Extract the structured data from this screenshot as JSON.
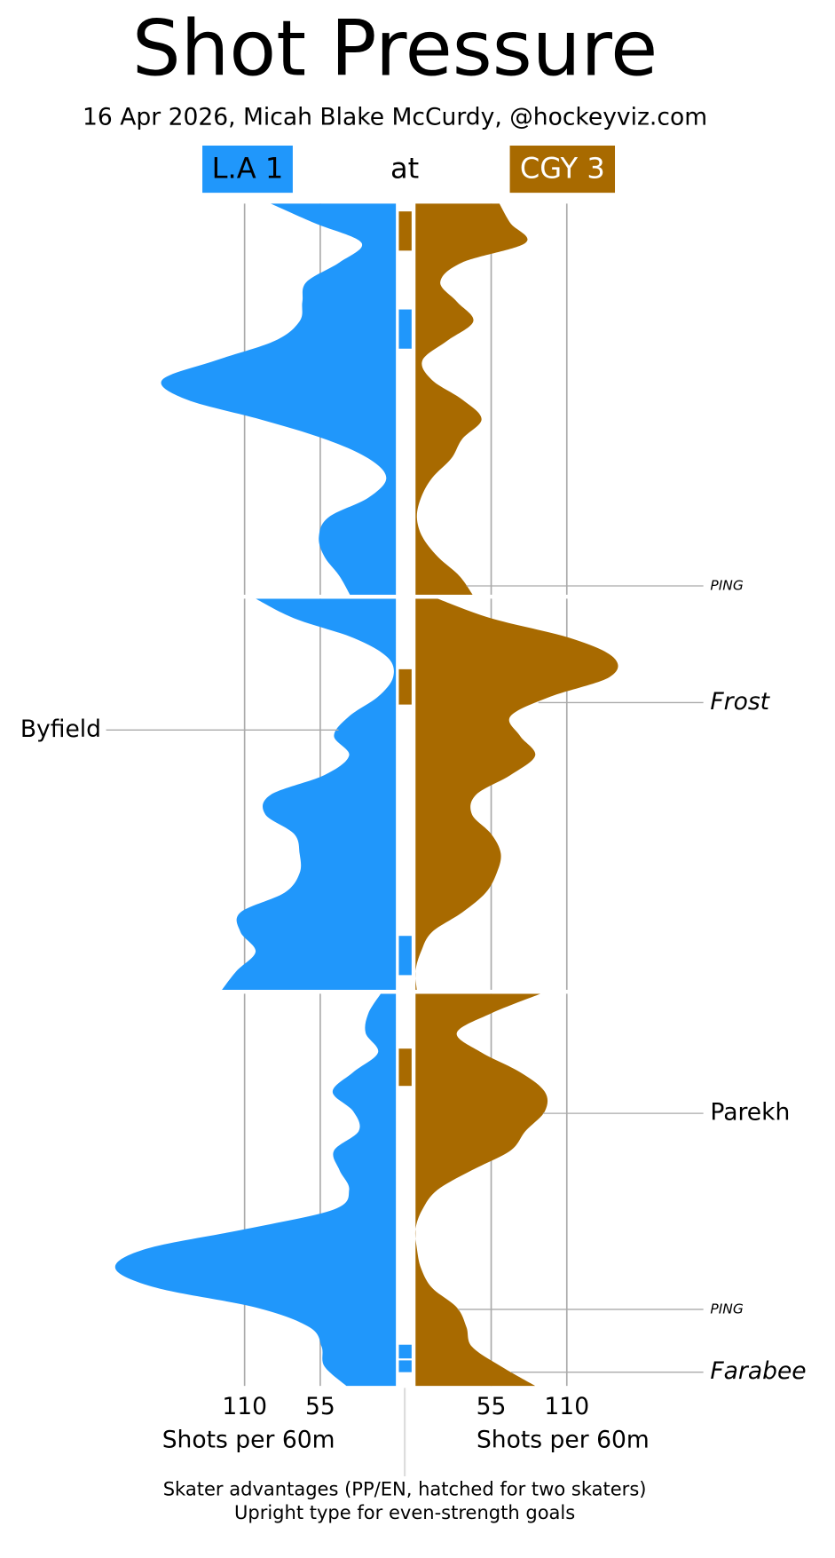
{
  "chart_data": {
    "type": "shot-pressure",
    "title": "Shot Pressure",
    "subtitle": "16 Apr 2026, Micah Blake McCurdy, @hockeyviz.com",
    "connector": "at",
    "x": [
      0,
      1,
      2,
      3,
      4,
      5,
      6,
      7,
      8,
      9,
      10,
      11,
      12,
      13,
      14,
      15,
      16,
      17,
      18,
      19,
      20
    ],
    "xlim": [
      0,
      210
    ],
    "xticks": [
      55,
      110
    ],
    "xlabel": "Shots per 60m",
    "series": [
      {
        "name": "L.A 1",
        "color": "#2097fb",
        "text_color": "#000000",
        "side": "left",
        "values": [
          [
            91,
            59,
            25,
            41,
            65,
            68,
            70,
            88,
            131,
            170,
            152,
            99,
            52,
            20,
            7,
            20,
            49,
            56,
            52,
            41,
            33
          ],
          [
            102,
            74,
            31,
            6,
            2,
            13,
            34,
            45,
            34,
            52,
            91,
            95,
            74,
            70,
            70,
            81,
            113,
            113,
            102,
            116,
            127
          ],
          [
            11,
            20,
            22,
            13,
            31,
            46,
            31,
            27,
            45,
            41,
            34,
            45,
            109,
            181,
            204,
            174,
            102,
            63,
            54,
            52,
            36
          ]
        ]
      },
      {
        "name": "CGY 3",
        "color": "#a86a00",
        "text_color": "#ffffff",
        "side": "right",
        "values": [
          [
            61,
            69,
            80,
            34,
            18,
            30,
            42,
            23,
            5,
            12,
            34,
            48,
            34,
            26,
            12,
            4,
            1,
            5,
            16,
            32,
            42
          ],
          [
            16,
            55,
            112,
            144,
            141,
            98,
            69,
            76,
            87,
            69,
            44,
            41,
            55,
            62,
            59,
            51,
            34,
            12,
            4,
            0,
            1
          ],
          [
            91,
            55,
            30,
            48,
            76,
            94,
            94,
            80,
            69,
            41,
            16,
            5,
            0,
            1,
            4,
            12,
            30,
            37,
            41,
            62,
            87
          ]
        ]
      }
    ],
    "advantages": [
      {
        "series": 1,
        "period": 0,
        "start": 0.4,
        "end": 2.4
      },
      {
        "series": 0,
        "period": 0,
        "start": 5.4,
        "end": 7.4
      },
      {
        "series": 1,
        "period": 1,
        "start": 3.6,
        "end": 5.4
      },
      {
        "series": 0,
        "period": 1,
        "start": 17.2,
        "end": 19.2
      },
      {
        "series": 1,
        "period": 2,
        "start": 2.8,
        "end": 4.7
      },
      {
        "series": 0,
        "period": 2,
        "start": 17.9,
        "end": 18.6
      },
      {
        "series": 0,
        "period": 2,
        "start": 18.7,
        "end": 19.3
      }
    ],
    "events": [
      {
        "label": "PING",
        "series": 1,
        "period": 0,
        "time": 19.5,
        "style": "italic",
        "size": "small"
      },
      {
        "label": "Frost",
        "series": 1,
        "period": 1,
        "time": 5.3,
        "style": "italic",
        "size": "large"
      },
      {
        "label": "Byfield",
        "series": 0,
        "period": 1,
        "time": 6.7,
        "style": "normal",
        "size": "large"
      },
      {
        "label": "Parekh",
        "series": 1,
        "period": 2,
        "time": 6.1,
        "style": "normal",
        "size": "large"
      },
      {
        "label": "PING",
        "series": 1,
        "period": 2,
        "time": 16.1,
        "style": "italic",
        "size": "small"
      },
      {
        "label": "Farabee",
        "series": 1,
        "period": 2,
        "time": 19.3,
        "style": "italic",
        "size": "large"
      }
    ],
    "notes": [
      "Skater advantages (PP/EN, hatched for two skaters)",
      "Upright type for even-strength goals"
    ]
  }
}
